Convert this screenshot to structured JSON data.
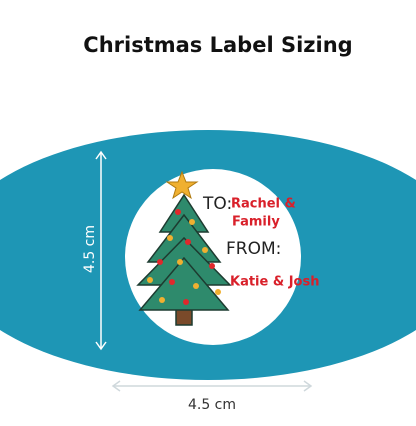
{
  "header": {
    "title": "Christmas Label Sizing"
  },
  "label": {
    "to_prefix": "TO:",
    "to_name_line1": "Rachel &",
    "to_name_line2": "Family",
    "from_prefix": "FROM:",
    "from_name": "Katie & Josh"
  },
  "dimensions": {
    "height": "4.5 cm",
    "width": "4.5 cm"
  }
}
